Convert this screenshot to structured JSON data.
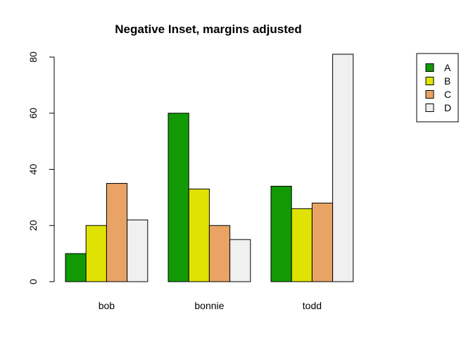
{
  "chart_data": {
    "type": "bar",
    "title": "Negative Inset, margins adjusted",
    "xlabel": "",
    "ylabel": "",
    "categories": [
      "bob",
      "bonnie",
      "todd"
    ],
    "series": [
      {
        "name": "A",
        "values": [
          10,
          60,
          34
        ],
        "color": "#119a04"
      },
      {
        "name": "B",
        "values": [
          20,
          33,
          26
        ],
        "color": "#e0e204"
      },
      {
        "name": "C",
        "values": [
          35,
          20,
          28
        ],
        "color": "#e8a365"
      },
      {
        "name": "D",
        "values": [
          22,
          15,
          81
        ],
        "color": "#f0f0f0"
      }
    ],
    "ylim": [
      0,
      80
    ],
    "yticks": [
      0,
      20,
      40,
      60,
      80
    ],
    "grid": false,
    "legend_position": "outside-top-right"
  }
}
